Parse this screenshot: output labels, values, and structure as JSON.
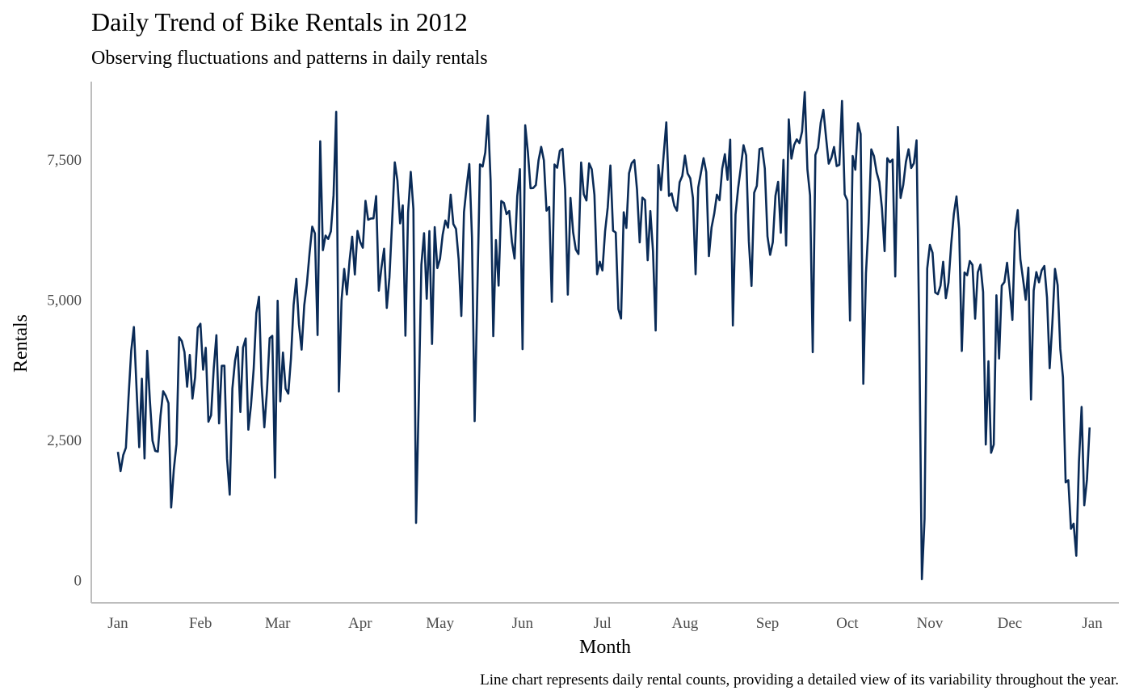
{
  "chart_data": {
    "type": "line",
    "title": "Daily Trend of Bike Rentals in 2012",
    "subtitle": "Observing fluctuations and patterns in daily rentals",
    "xlabel": "Month",
    "ylabel": "Rentals",
    "caption": "Line chart represents daily rental counts, providing a detailed view of its variability throughout the year.",
    "grid": false,
    "legend": "none",
    "line_color": "#0a2b57",
    "axis_color": "#bdbdbd",
    "ylim": [
      -400,
      8900
    ],
    "xlim": [
      -10,
      376
    ],
    "y_ticks": [
      {
        "value": 0,
        "label": "0"
      },
      {
        "value": 2500,
        "label": "2,500"
      },
      {
        "value": 5000,
        "label": "5,000"
      },
      {
        "value": 7500,
        "label": "7,500"
      }
    ],
    "x_ticks": [
      {
        "day": 0,
        "label": "Jan"
      },
      {
        "day": 31,
        "label": "Feb"
      },
      {
        "day": 60,
        "label": "Mar"
      },
      {
        "day": 91,
        "label": "Apr"
      },
      {
        "day": 121,
        "label": "May"
      },
      {
        "day": 152,
        "label": "Jun"
      },
      {
        "day": 182,
        "label": "Jul"
      },
      {
        "day": 213,
        "label": "Aug"
      },
      {
        "day": 244,
        "label": "Sep"
      },
      {
        "day": 274,
        "label": "Oct"
      },
      {
        "day": 305,
        "label": "Nov"
      },
      {
        "day": 335,
        "label": "Dec"
      },
      {
        "day": 366,
        "label": "Jan"
      }
    ],
    "series": [
      {
        "values": [
          2294,
          1951,
          2236,
          2368,
          3272,
          4098,
          4521,
          3425,
          2376,
          3598,
          2177,
          4097,
          3214,
          2493,
          2311,
          2298,
          2935,
          3376,
          3292,
          3163,
          1301,
          1977,
          2432,
          4339,
          4270,
          4075,
          3456,
          4023,
          3243,
          3624,
          4509,
          4579,
          3761,
          4151,
          2832,
          2947,
          3784,
          4375,
          2802,
          3830,
          3831,
          2169,
          1529,
          3422,
          3922,
          4169,
          3005,
          4154,
          4318,
          2689,
          3129,
          3777,
          4773,
          5062,
          3487,
          2732,
          3389,
          4322,
          4363,
          1834,
          4990,
          3194,
          4066,
          3423,
          3333,
          3956,
          4916,
          5382,
          4569,
          4118,
          4911,
          5298,
          5847,
          6312,
          6192,
          4378,
          7836,
          5892,
          6153,
          6093,
          6230,
          6871,
          8362,
          3372,
          4996,
          5558,
          5102,
          5698,
          6133,
          5459,
          6235,
          6041,
          5936,
          6772,
          6436,
          6457,
          6460,
          6857,
          5169,
          5585,
          5918,
          4862,
          5409,
          6398,
          7460,
          7132,
          6370,
          6691,
          4367,
          6565,
          7290,
          6624,
          1027,
          3214,
          5633,
          6196,
          5026,
          6233,
          4220,
          6304,
          5572,
          5740,
          6169,
          6421,
          6296,
          6883,
          6359,
          6273,
          5728,
          4717,
          6572,
          7030,
          7429,
          6118,
          2843,
          5115,
          7424,
          7384,
          7639,
          8294,
          7129,
          4359,
          6073,
          5260,
          6770,
          6734,
          6536,
          6591,
          6043,
          5743,
          6855,
          7338,
          4127,
          8120,
          7641,
          6998,
          7001,
          7055,
          7494,
          7736,
          7498,
          6598,
          6664,
          4972,
          7421,
          7363,
          7665,
          7702,
          6978,
          5099,
          6825,
          6211,
          5905,
          5823,
          7458,
          6891,
          6779,
          7442,
          7335,
          6879,
          5463,
          5687,
          5531,
          6227,
          6660,
          7403,
          6241,
          6207,
          4840,
          4672,
          6569,
          6290,
          7264,
          7446,
          7499,
          6969,
          6031,
          6830,
          6786,
          5713,
          6591,
          5870,
          4459,
          7410,
          6966,
          7592,
          8173,
          6861,
          6904,
          6685,
          6597,
          7105,
          7216,
          7580,
          7261,
          7175,
          6824,
          5464,
          7013,
          7273,
          7534,
          7286,
          5786,
          6299,
          6544,
          6883,
          6784,
          7347,
          7605,
          7148,
          7865,
          4549,
          6530,
          7006,
          7375,
          7765,
          7582,
          6053,
          5255,
          6917,
          7040,
          7697,
          7713,
          7350,
          6140,
          5810,
          6034,
          6864,
          7112,
          6203,
          7504,
          5976,
          8227,
          7525,
          7767,
          7870,
          7804,
          8009,
          8714,
          7333,
          6869,
          4073,
          7591,
          7720,
          8167,
          8395,
          7907,
          7436,
          7538,
          7733,
          7393,
          7415,
          8555,
          6889,
          6778,
          4639,
          7572,
          7328,
          8156,
          7965,
          3510,
          5478,
          6392,
          7691,
          7570,
          7282,
          7109,
          6639,
          5875,
          7534,
          7461,
          7509,
          5424,
          8090,
          6824,
          7058,
          7466,
          7693,
          7359,
          7444,
          7852,
          4459,
          22,
          1096,
          5566,
          5986,
          5847,
          5138,
          5107,
          5259,
          5686,
          5035,
          5315,
          5992,
          6536,
          6852,
          6269,
          4094,
          5495,
          5445,
          5698,
          5629,
          4669,
          5499,
          5634,
          5146,
          2425,
          3910,
          2277,
          2424,
          5087,
          3959,
          5260,
          5323,
          5668,
          5191,
          4649,
          6234,
          6606,
          5729,
          5375,
          5008,
          5582,
          3228,
          5170,
          5501,
          5319,
          5532,
          5611,
          5047,
          3786,
          4585,
          5557,
          5267,
          4128,
          3623,
          1749,
          1787,
          920,
          1013,
          441,
          2114,
          3095,
          1341,
          1796,
          2729
        ]
      }
    ]
  }
}
